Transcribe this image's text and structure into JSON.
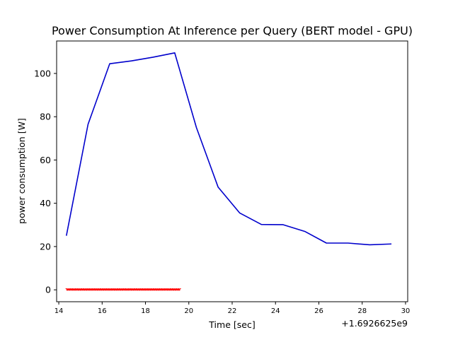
{
  "chart_data": {
    "type": "line",
    "title": "Power Consumption At Inference per Query (BERT model - GPU)",
    "xlabel": "Time [sec]",
    "ylabel": "power consumption [W]",
    "x_offset_label": "+1.6926625e9",
    "xlim": [
      13.9,
      30.1
    ],
    "ylim": [
      -5.5,
      115
    ],
    "x_ticks": [
      14,
      16,
      18,
      20,
      22,
      24,
      26,
      28,
      30
    ],
    "y_ticks": [
      0,
      20,
      40,
      60,
      80,
      100
    ],
    "grid": false,
    "colors": {
      "blue": "#0000cc",
      "red": "#ff0000"
    },
    "series": [
      {
        "color": "#0000cc",
        "x": [
          14.35,
          15.35,
          16.35,
          17.35,
          18.35,
          19.35,
          20.35,
          21.35,
          22.35,
          23.35,
          24.35,
          25.35,
          26.35,
          27.35,
          28.35,
          29.35
        ],
        "y": [
          25,
          76.5,
          104.5,
          105.8,
          107.5,
          109.5,
          75,
          47.5,
          35.5,
          30.2,
          30.1,
          27,
          21.6,
          21.6,
          20.8,
          21.2
        ]
      },
      {
        "color": "#ff0000",
        "style": "dense-markers",
        "x_range": [
          14.35,
          19.6
        ],
        "y_range": [
          -0.2,
          0.5
        ]
      }
    ]
  }
}
